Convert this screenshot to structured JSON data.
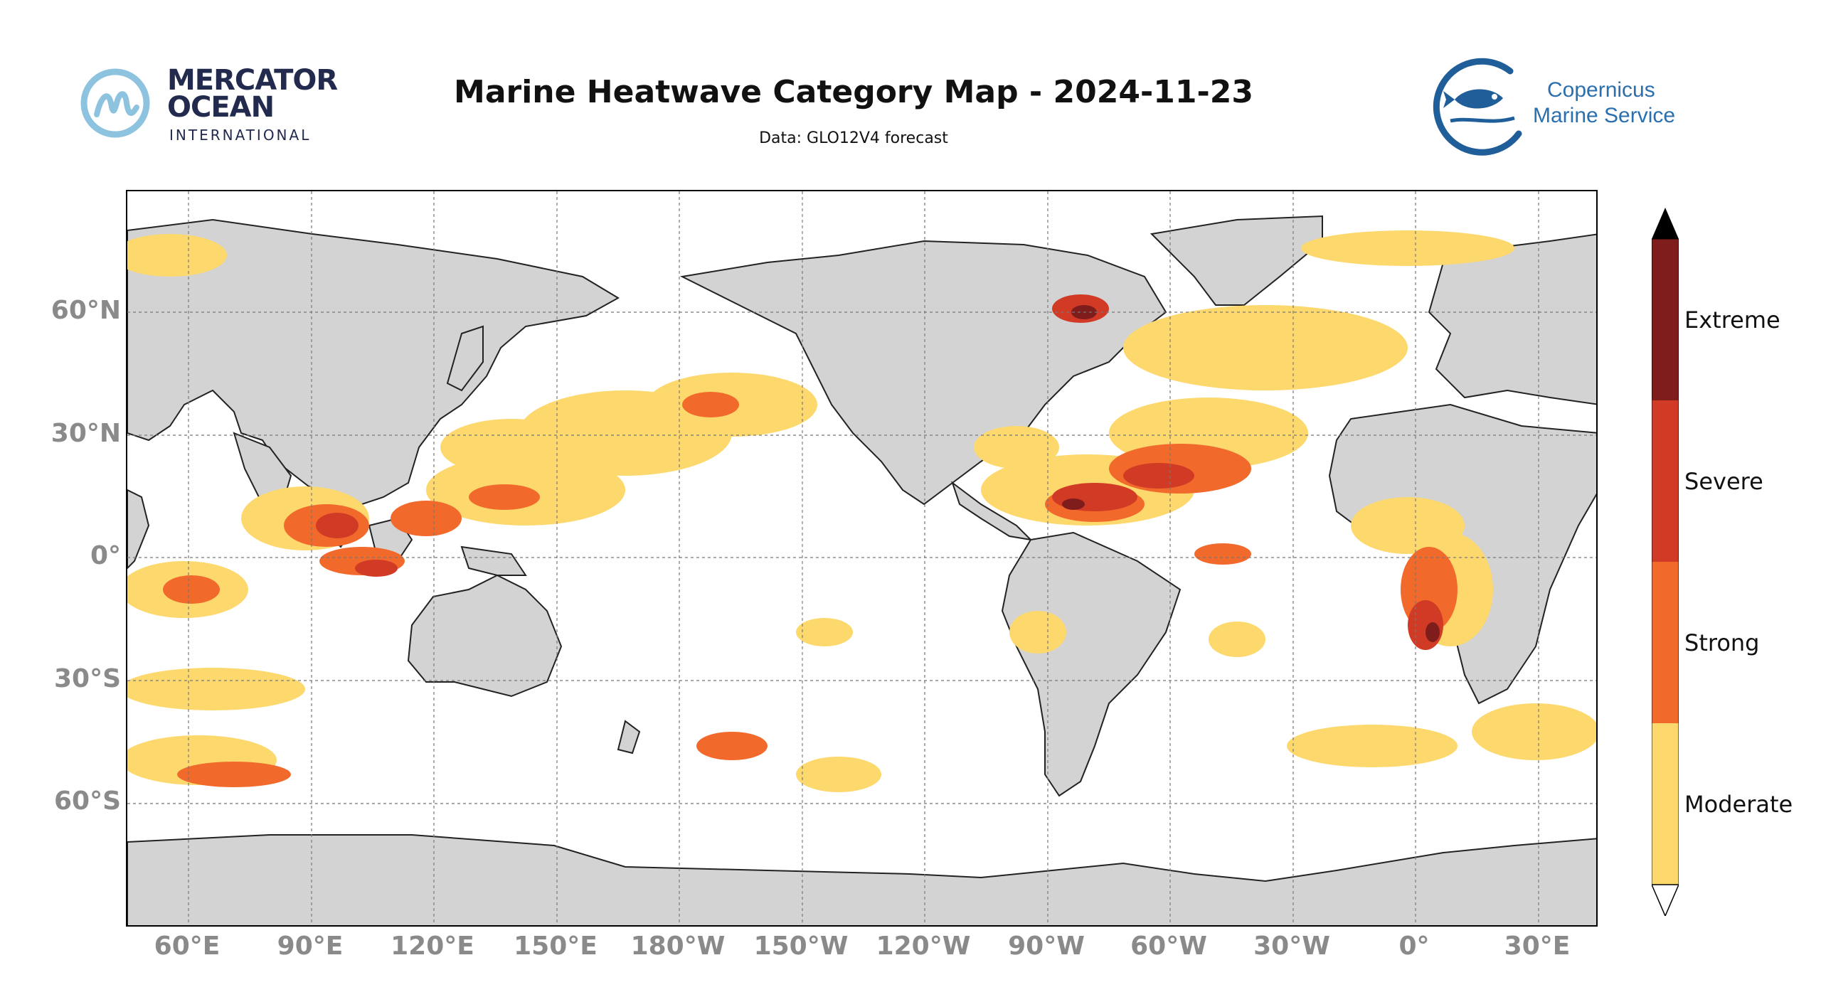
{
  "header": {
    "title": "Marine Heatwave Category Map - 2024-11-23",
    "subtitle": "Data: GLO12V4 forecast"
  },
  "logos": {
    "left": {
      "line1": "MERCATOR",
      "line2": "OCEAN",
      "line3": "INTERNATIONAL"
    },
    "right": {
      "line1": "Copernicus",
      "line2": "Marine Service"
    }
  },
  "map": {
    "projection": "PlateCarree (central longitude ~210°E)",
    "lon_range": [
      "45°E",
      "55°E"
    ],
    "lat_labels": [
      "60°N",
      "30°N",
      "0°",
      "30°S",
      "60°S"
    ],
    "lon_labels": [
      "60°E",
      "90°E",
      "120°E",
      "150°E",
      "180°W",
      "150°W",
      "120°W",
      "90°W",
      "60°W",
      "30°W",
      "0°",
      "30°E"
    ],
    "land_color": "#d3d3d3",
    "ocean_color": "#ffffff"
  },
  "legend": {
    "categories": [
      {
        "label": "Extreme",
        "color": "#7f1d1d"
      },
      {
        "label": "Severe",
        "color": "#d13a24"
      },
      {
        "label": "Strong",
        "color": "#f2692c"
      },
      {
        "label": "Moderate",
        "color": "#fdd86c"
      }
    ]
  }
}
